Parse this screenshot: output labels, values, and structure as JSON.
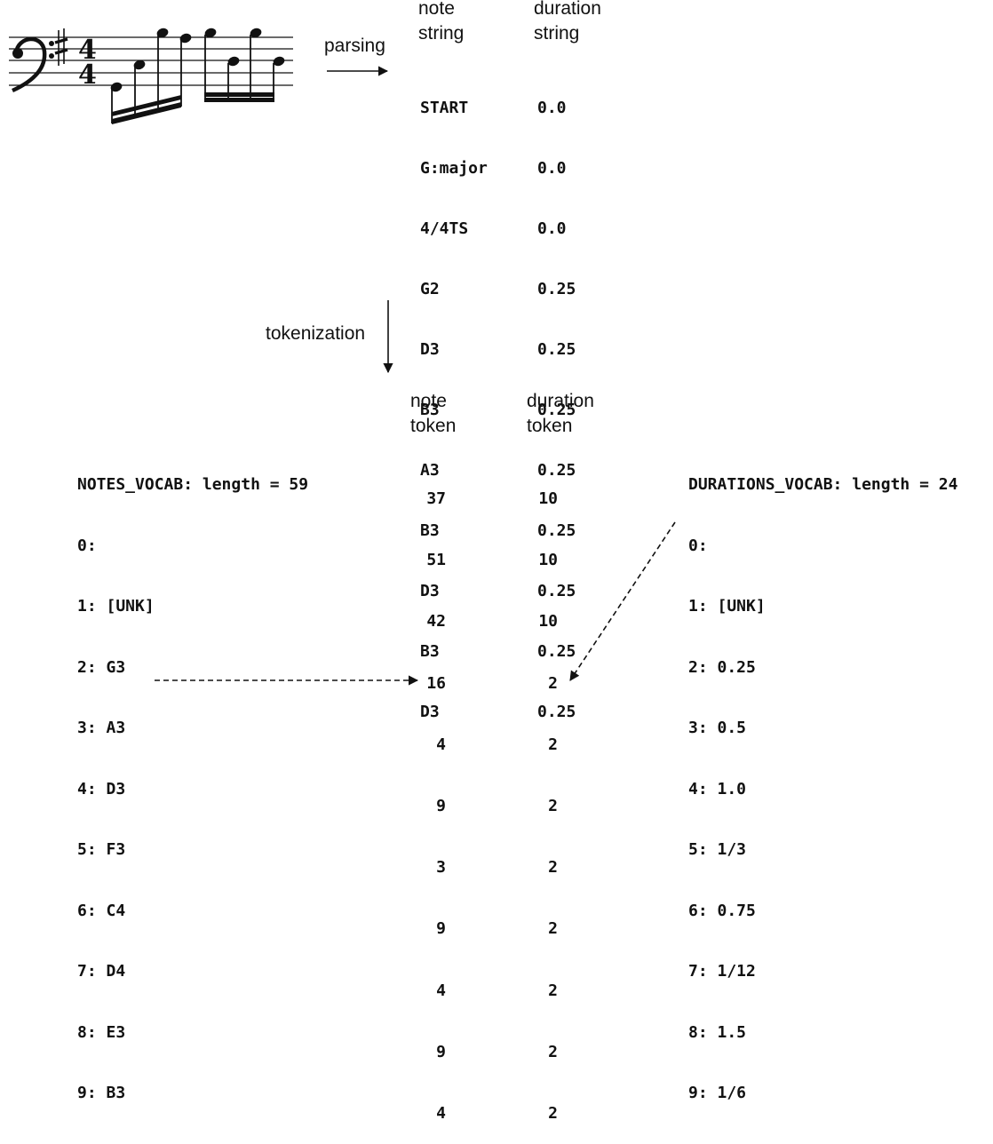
{
  "labels": {
    "parsing": "parsing",
    "tokenization": "tokenization",
    "note_string_header": [
      "note",
      "string"
    ],
    "duration_string_header": [
      "duration",
      "string"
    ],
    "note_token_header": [
      "note",
      "token"
    ],
    "duration_token_header": [
      "duration",
      "token"
    ]
  },
  "parsed": {
    "notes": [
      "START",
      "G:major",
      "4/4TS",
      "G2",
      "D3",
      "B3",
      "A3",
      "B3",
      "D3",
      "B3",
      "D3"
    ],
    "durations": [
      "0.0",
      "0.0",
      "0.0",
      "0.25",
      "0.25",
      "0.25",
      "0.25",
      "0.25",
      "0.25",
      "0.25",
      "0.25"
    ]
  },
  "tokens": {
    "notes": [
      "37",
      "51",
      "42",
      "16",
      "4",
      "9",
      "3",
      "9",
      "4",
      "9",
      "4"
    ],
    "durations": [
      "10",
      "10",
      "10",
      "2",
      "2",
      "2",
      "2",
      "2",
      "2",
      "2",
      "2"
    ]
  },
  "notes_vocab": {
    "title": "NOTES_VOCAB: length = 59",
    "entries": [
      "0:",
      "1: [UNK]",
      "2: G3",
      "3: A3",
      "4: D3",
      "5: F3",
      "6: C4",
      "7: D4",
      "8: E3",
      "9: B3"
    ]
  },
  "durations_vocab": {
    "title": "DURATIONS_VOCAB: length = 24",
    "entries": [
      "0:",
      "1: [UNK]",
      "2: 0.25",
      "3: 0.5",
      "4: 1.0",
      "5: 1/3",
      "6: 0.75",
      "7: 1/12",
      "8: 1.5",
      "9: 1/6"
    ]
  },
  "score": {
    "clef": "bass-clef",
    "key_signature": "G major (one sharp)",
    "time_signature": [
      "4",
      "4"
    ]
  }
}
